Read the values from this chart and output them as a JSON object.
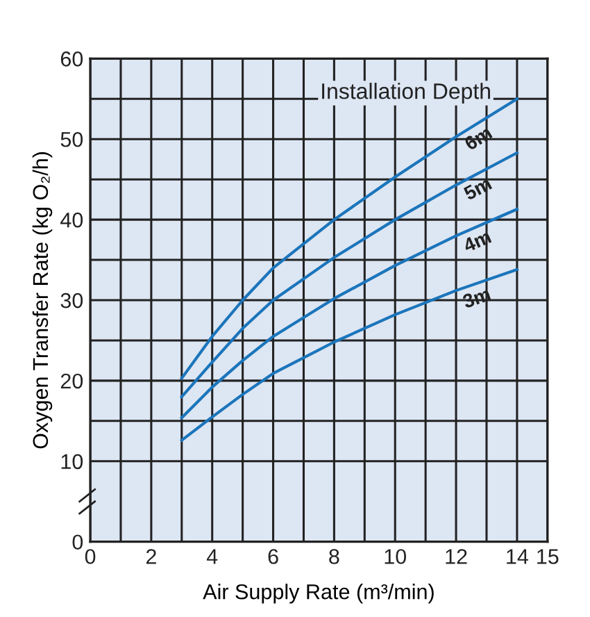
{
  "chart_data": {
    "type": "line",
    "xlabel": "Air Supply Rate (m³/min)",
    "ylabel": "Oxygen Transfer Rate (kg O₂/h)",
    "legend_title": "Installation Depth",
    "x": [
      3,
      4,
      5,
      6,
      8,
      10,
      12,
      14
    ],
    "series": [
      {
        "name": "6m",
        "color": "#1b75bb",
        "values": [
          20.3,
          25.5,
          30,
          34,
          40,
          45.3,
          50.3,
          55
        ]
      },
      {
        "name": "5m",
        "color": "#1b75bb",
        "values": [
          18,
          22.3,
          26.5,
          30,
          35.3,
          40,
          44.3,
          48.3
        ]
      },
      {
        "name": "4m",
        "color": "#1b75bb",
        "values": [
          15.4,
          19.2,
          22.5,
          25.5,
          30.2,
          34.3,
          38,
          41.3
        ]
      },
      {
        "name": "3m",
        "color": "#1b75bb",
        "values": [
          12.6,
          15.5,
          18.3,
          20.9,
          24.8,
          28.2,
          31.2,
          33.8
        ]
      }
    ],
    "xlim": [
      0,
      15
    ],
    "xticks": [
      0,
      {
        "value": 1,
        "label": null
      },
      2,
      {
        "value": 3,
        "label": null
      },
      4,
      {
        "value": 5,
        "label": null
      },
      6,
      {
        "value": 7,
        "label": null
      },
      8,
      {
        "value": 9,
        "label": null
      },
      10,
      {
        "value": 11,
        "label": null
      },
      12,
      {
        "value": 13,
        "label": null
      },
      14,
      15
    ],
    "ylim": [
      0,
      60
    ],
    "yticks": [
      0,
      10,
      {
        "value": 15,
        "label": null
      },
      20,
      {
        "value": 25,
        "label": null
      },
      30,
      {
        "value": 35,
        "label": null
      },
      40,
      {
        "value": 45,
        "label": null
      },
      50,
      {
        "value": 55,
        "label": null
      },
      60
    ],
    "grid": true,
    "marker": "none",
    "line_style": "solid"
  }
}
